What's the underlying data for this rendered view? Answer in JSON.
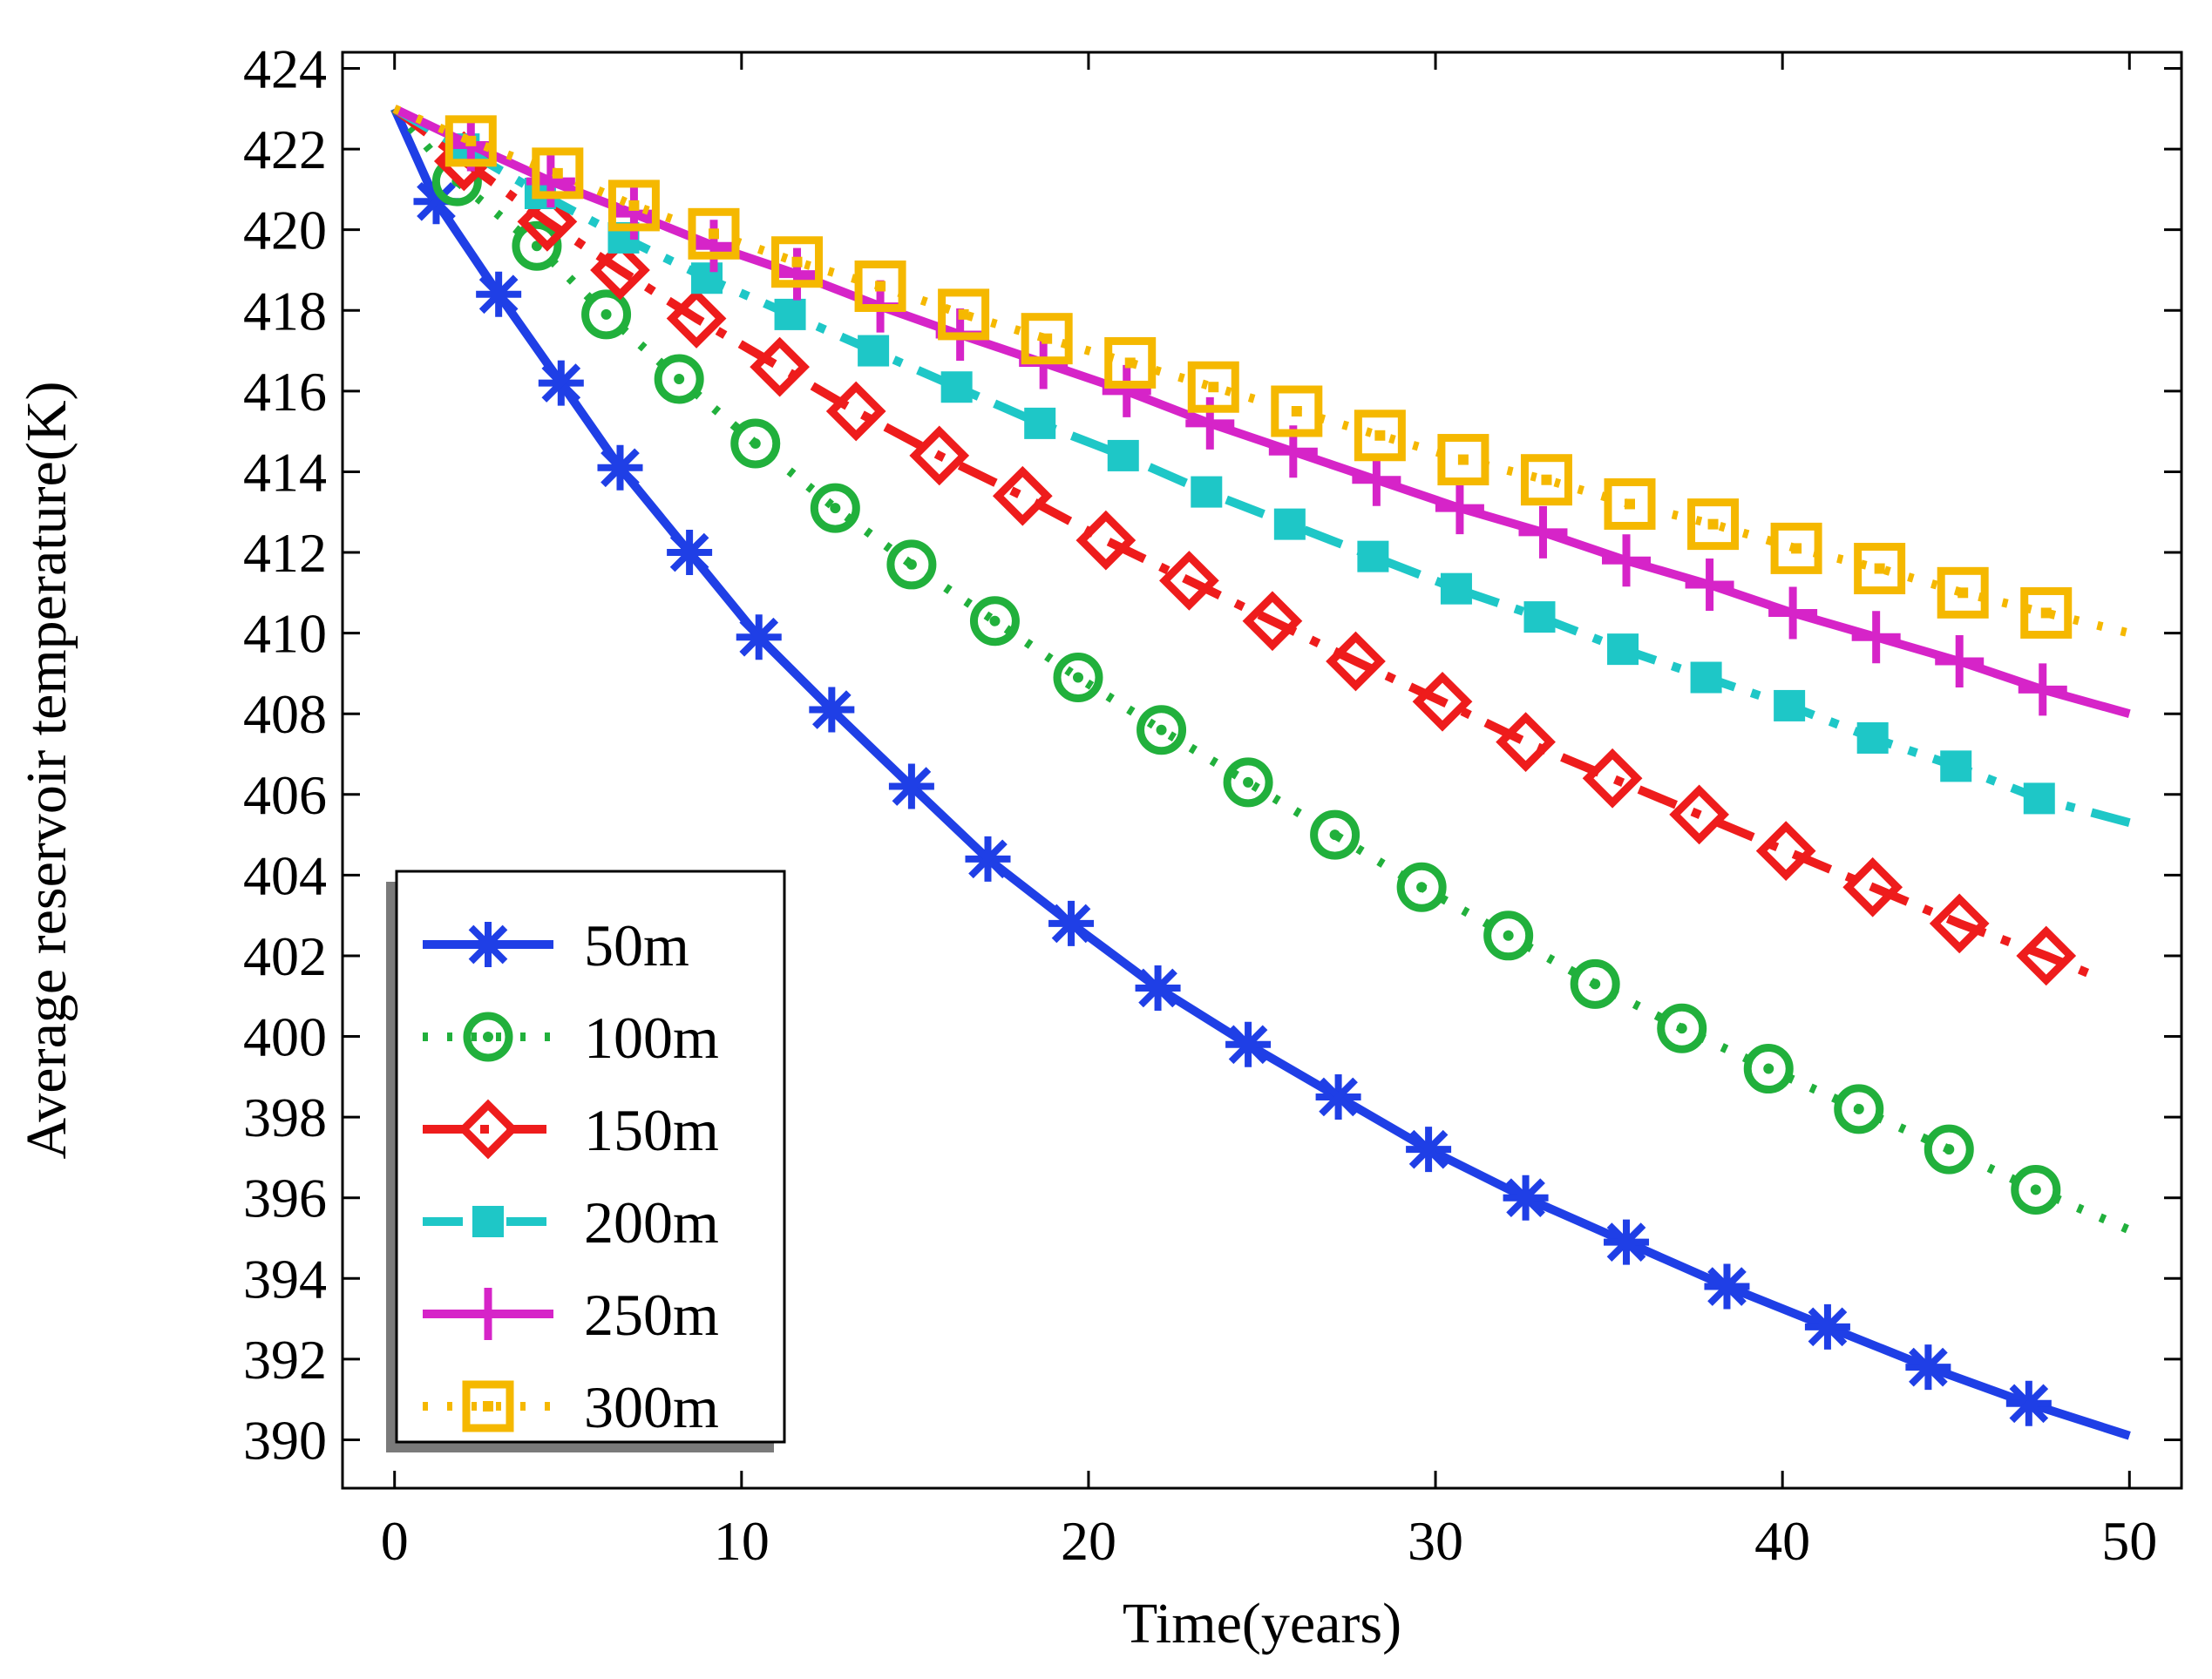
{
  "chart_data": {
    "type": "line",
    "title": "",
    "xlabel": "Time(years)",
    "ylabel": "Average reservoir temperature(K)",
    "xlim": [
      -1.5,
      51.5
    ],
    "ylim": [
      388.8,
      424.4
    ],
    "xticks": [
      0,
      10,
      20,
      30,
      40,
      50
    ],
    "yticks": [
      390,
      392,
      394,
      396,
      398,
      400,
      402,
      404,
      406,
      408,
      410,
      412,
      414,
      416,
      418,
      420,
      422,
      424
    ],
    "grid": false,
    "legend_position": "lower-left",
    "series": [
      {
        "name": "50m",
        "color": "#1f3fe6",
        "line_style": "solid",
        "marker": "asterisk",
        "x": [
          0,
          1.2,
          3,
          4.8,
          6.5,
          8.5,
          10.5,
          12.6,
          14.9,
          17.1,
          19.5,
          22,
          24.6,
          27.2,
          29.8,
          32.6,
          35.5,
          38.4,
          41.3,
          44.2,
          47.1,
          50
        ],
        "y": [
          423,
          420.7,
          418.4,
          416.2,
          414.1,
          412,
          409.9,
          408.1,
          406.2,
          404.4,
          402.8,
          401.2,
          399.8,
          398.5,
          397.2,
          396,
          394.9,
          393.8,
          392.8,
          391.8,
          390.9,
          390.1
        ]
      },
      {
        "name": "100m",
        "color": "#21b03c",
        "line_style": "dotted",
        "marker": "circle",
        "x": [
          0,
          1.8,
          4.1,
          6.1,
          8.2,
          10.4,
          12.7,
          14.9,
          17.3,
          19.7,
          22.1,
          24.6,
          27.1,
          29.6,
          32.1,
          34.6,
          37.1,
          39.6,
          42.2,
          44.8,
          47.3,
          50
        ],
        "y": [
          423,
          421.2,
          419.6,
          417.9,
          416.3,
          414.7,
          413.1,
          411.7,
          410.3,
          408.9,
          407.6,
          406.3,
          405,
          403.7,
          402.5,
          401.3,
          400.2,
          399.2,
          398.2,
          397.2,
          396.2,
          395.2
        ]
      },
      {
        "name": "150m",
        "color": "#ee1c1c",
        "line_style": "dash-dot",
        "marker": "diamond",
        "x": [
          0,
          2,
          4.4,
          6.5,
          8.7,
          11.1,
          13.3,
          15.7,
          18.1,
          20.5,
          22.9,
          25.3,
          27.7,
          30.2,
          32.6,
          35.1,
          37.6,
          40.1,
          42.6,
          45.1,
          47.6,
          49
        ],
        "y": [
          423,
          421.7,
          420.2,
          419,
          417.8,
          416.6,
          415.5,
          414.4,
          413.4,
          412.3,
          411.3,
          410.3,
          409.3,
          408.3,
          407.3,
          406.4,
          405.5,
          404.6,
          403.7,
          402.8,
          402,
          401.5
        ]
      },
      {
        "name": "200m",
        "color": "#1ec7c7",
        "line_style": "dash-dot",
        "marker": "square-filled",
        "x": [
          0,
          2,
          4.2,
          6.6,
          9,
          11.4,
          13.8,
          16.2,
          18.6,
          21,
          23.4,
          25.8,
          28.2,
          30.6,
          33,
          35.4,
          37.8,
          40.2,
          42.6,
          45,
          47.4,
          50
        ],
        "y": [
          423,
          422,
          420.9,
          419.8,
          418.8,
          417.9,
          417,
          416.1,
          415.2,
          414.4,
          413.5,
          412.7,
          411.9,
          411.1,
          410.4,
          409.6,
          408.9,
          408.2,
          407.4,
          406.7,
          405.9,
          405.3
        ]
      },
      {
        "name": "250m",
        "color": "#d624c8",
        "line_style": "solid",
        "marker": "plus",
        "x": [
          0,
          2.2,
          4.5,
          6.9,
          9.2,
          11.6,
          14,
          16.3,
          18.7,
          21.1,
          23.5,
          25.9,
          28.3,
          30.7,
          33.1,
          35.5,
          37.9,
          40.3,
          42.7,
          45.1,
          47.5,
          50
        ],
        "y": [
          423,
          422.1,
          421.2,
          420.4,
          419.6,
          418.9,
          418.1,
          417.4,
          416.7,
          416,
          415.2,
          414.5,
          413.8,
          413.1,
          412.5,
          411.8,
          411.2,
          410.5,
          409.9,
          409.3,
          408.6,
          408
        ]
      },
      {
        "name": "300m",
        "color": "#f5b800",
        "line_style": "dotted",
        "marker": "square-dot",
        "x": [
          0,
          2.2,
          4.7,
          6.9,
          9.2,
          11.6,
          14,
          16.4,
          18.8,
          21.2,
          23.6,
          26,
          28.4,
          30.8,
          33.2,
          35.6,
          38,
          40.4,
          42.8,
          45.2,
          47.6,
          50
        ],
        "y": [
          423,
          422.2,
          421.4,
          420.6,
          419.9,
          419.2,
          418.6,
          417.9,
          417.3,
          416.7,
          416.1,
          415.5,
          414.9,
          414.3,
          413.8,
          413.2,
          412.7,
          412.1,
          411.6,
          411,
          410.5,
          410
        ]
      }
    ]
  }
}
